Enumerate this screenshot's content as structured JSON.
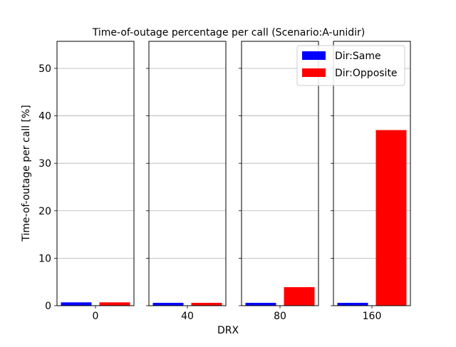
{
  "chart_data": {
    "type": "bar",
    "title": "Time-of-outage percentage per call (Scenario:A-unidir)",
    "xlabel": "DRX",
    "ylabel": "Time-of-outage per call [%]",
    "categories": [
      "0",
      "40",
      "80",
      "160"
    ],
    "series": [
      {
        "name": "Dir:Same",
        "color": "#0000ff",
        "values": [
          0.7,
          0.6,
          0.6,
          0.6
        ]
      },
      {
        "name": "Dir:Opposite",
        "color": "#ff0000",
        "values": [
          0.7,
          0.6,
          3.9,
          37.0
        ]
      }
    ],
    "ylim": [
      0,
      55.7
    ],
    "yticks": [
      0,
      10,
      20,
      30,
      40,
      50
    ],
    "grid": "horizontal",
    "legend_position": "top-right"
  }
}
